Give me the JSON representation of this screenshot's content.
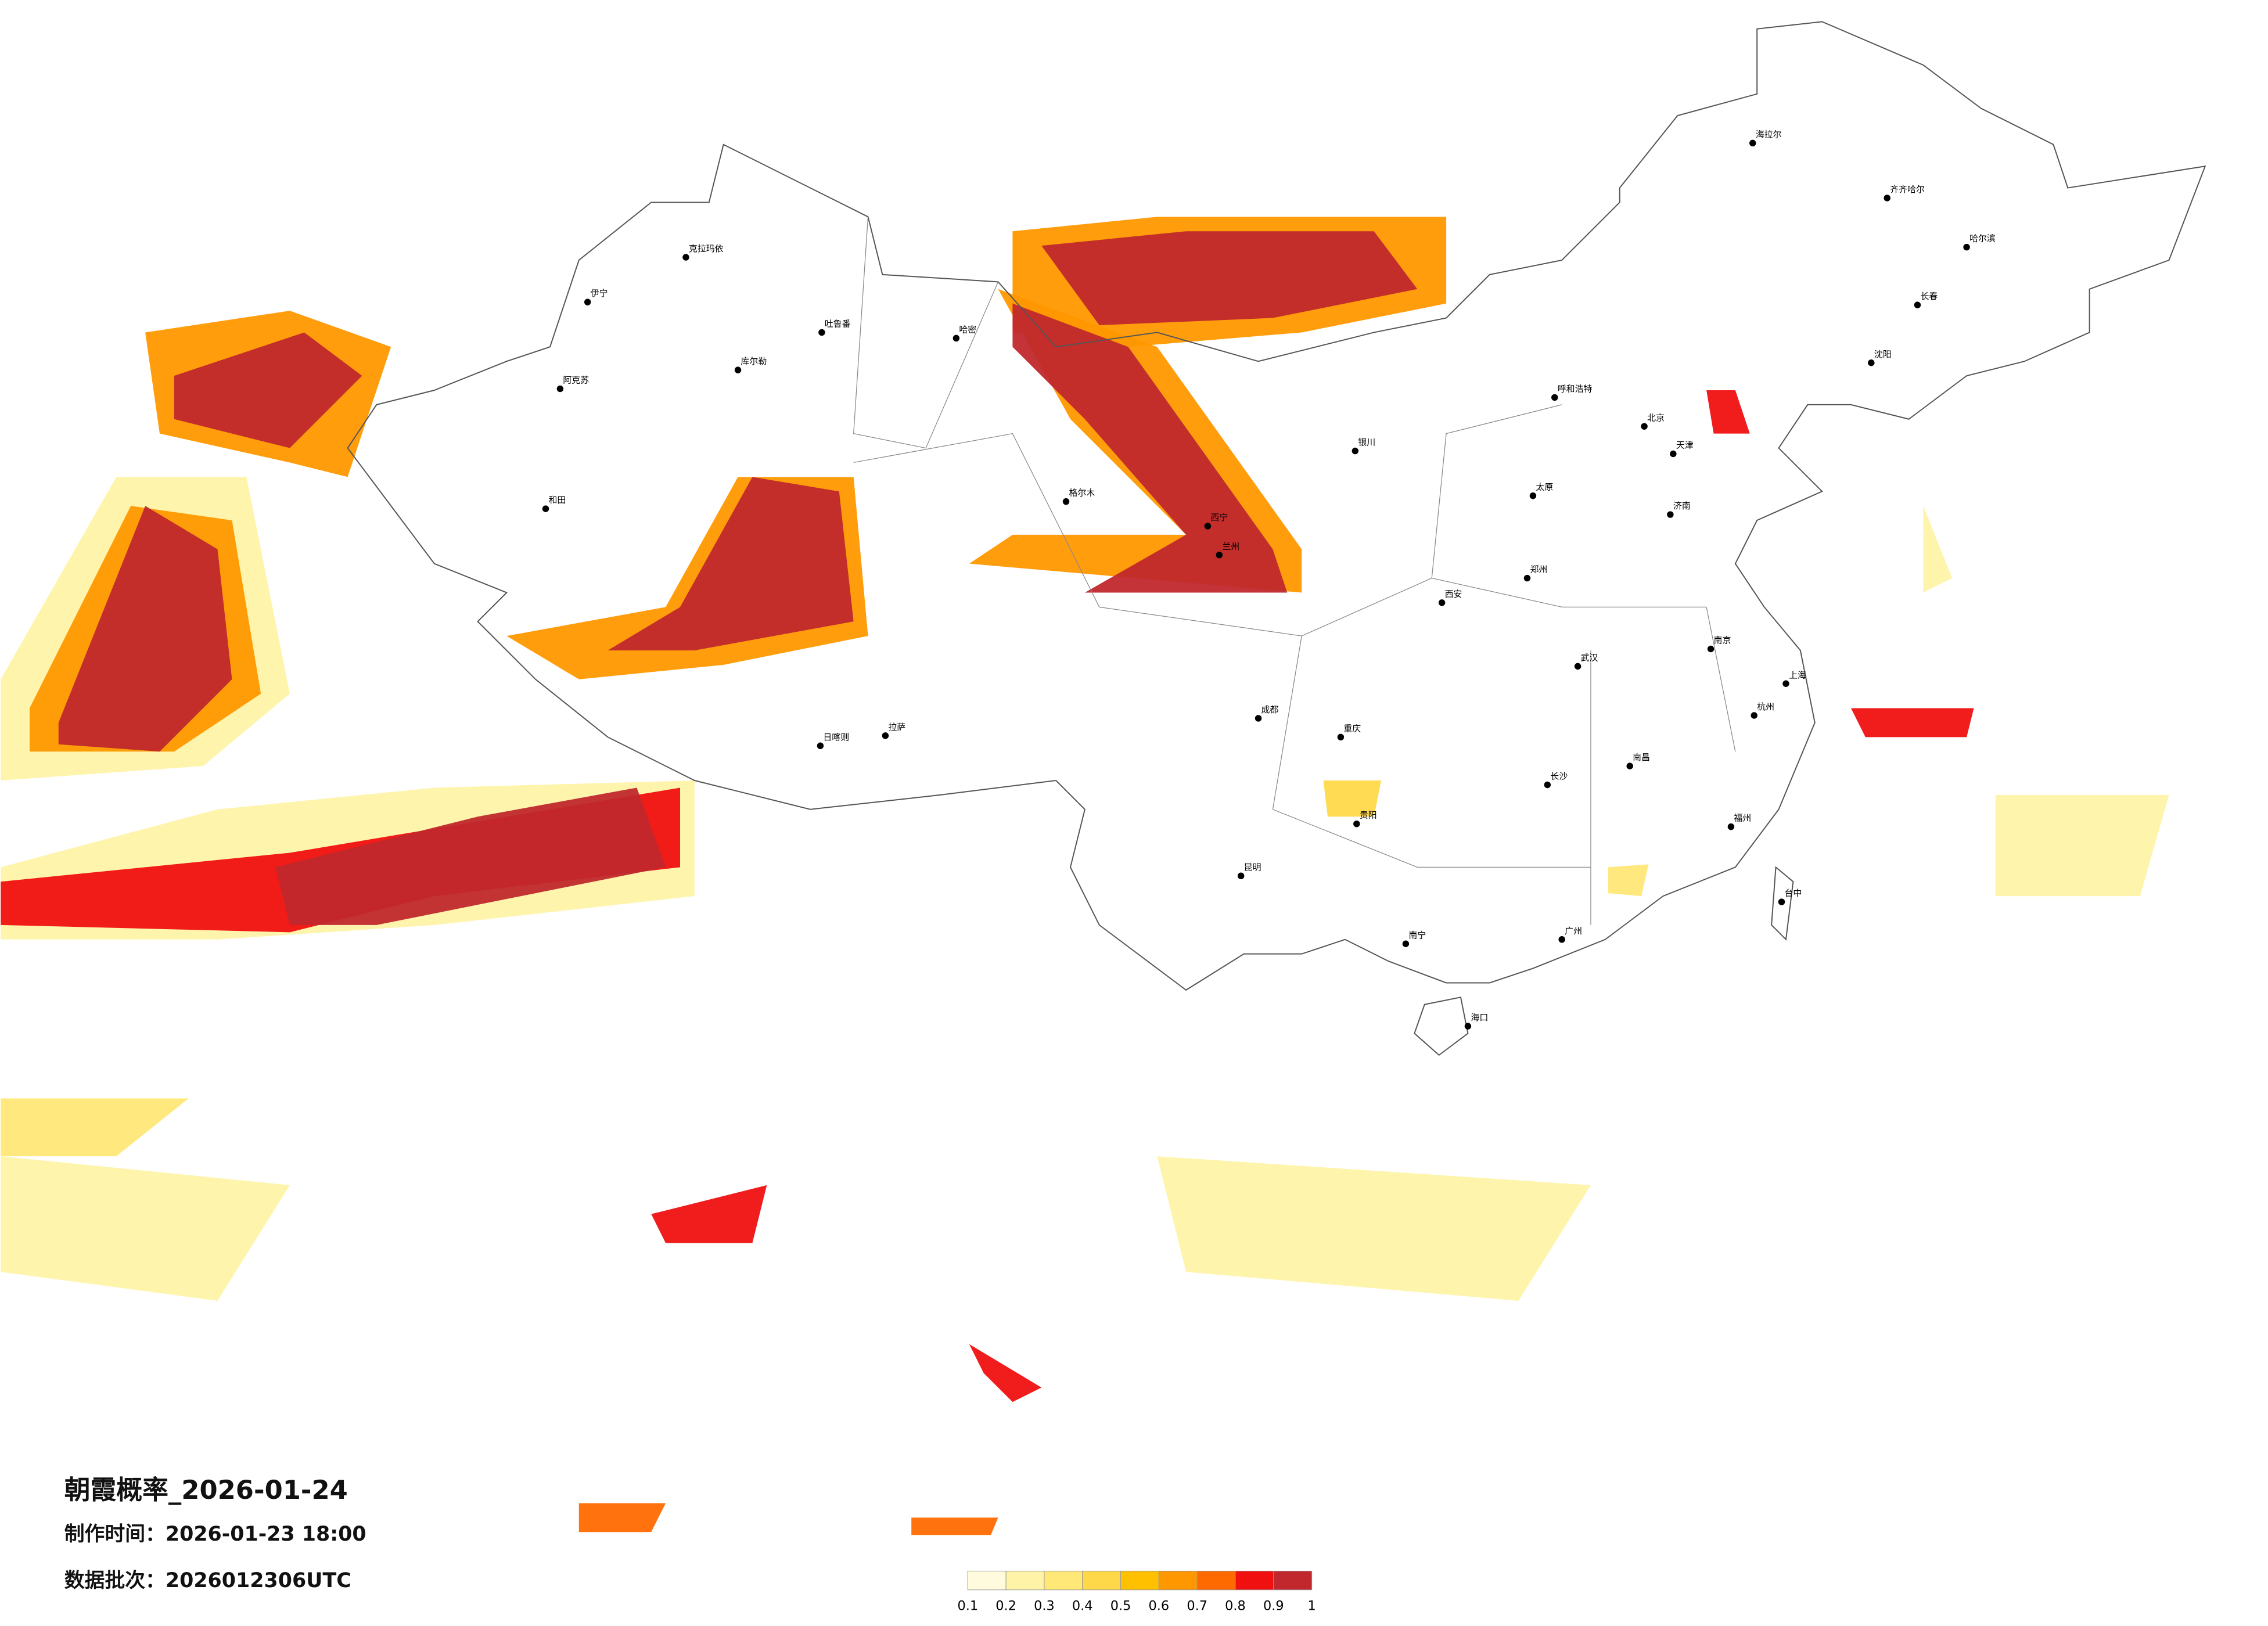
{
  "map": {
    "title": "朝霞概率_2026-01-24",
    "made_time": "制作时间：2026-01-23 18:00",
    "batch": "数据批次：2026012306UTC",
    "colorbar": {
      "ticks": [
        0.1,
        0.2,
        0.3,
        0.4,
        0.5,
        0.6,
        0.7,
        0.8,
        0.9,
        1
      ],
      "colors": [
        "#fffbdc",
        "#fff3a8",
        "#ffe878",
        "#ffd84a",
        "#ffc000",
        "#ff9800",
        "#ff6a00",
        "#f01010",
        "#c0282d"
      ]
    },
    "cities": [
      "克拉玛依",
      "伊宁",
      "阿克苏",
      "和田",
      "哈密",
      "吐鲁番",
      "库尔勒",
      "格尔木",
      "拉萨",
      "日喀则",
      "西宁",
      "兰州",
      "银川",
      "呼和浩特",
      "北京",
      "天津",
      "海拉尔",
      "齐齐哈尔",
      "哈尔滨",
      "长春",
      "沈阳",
      "济南",
      "郑州",
      "西安",
      "成都",
      "重庆",
      "武汉",
      "南京",
      "上海",
      "杭州",
      "长沙",
      "南昌",
      "福州",
      "广州",
      "南宁",
      "昆明",
      "贵阳",
      "海口",
      "台中",
      "太原"
    ]
  }
}
